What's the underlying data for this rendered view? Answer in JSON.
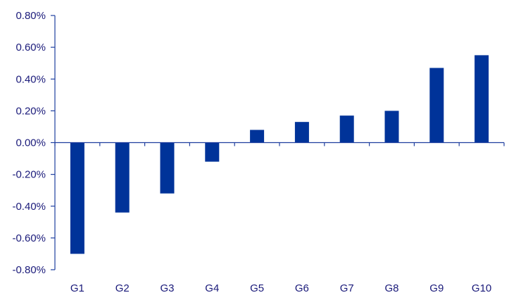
{
  "chart_data": {
    "type": "bar",
    "title": "",
    "xlabel": "",
    "ylabel": "",
    "categories": [
      "G1",
      "G2",
      "G3",
      "G4",
      "G5",
      "G6",
      "G7",
      "G8",
      "G9",
      "G10"
    ],
    "values": [
      -0.7,
      -0.44,
      -0.32,
      -0.12,
      0.08,
      0.13,
      0.17,
      0.2,
      0.47,
      0.55
    ],
    "ylim": [
      -0.8,
      0.8
    ],
    "yticks": [
      0.8,
      0.6,
      0.4,
      0.2,
      0.0,
      -0.2,
      -0.4,
      -0.6,
      -0.8
    ],
    "ytick_labels": [
      "0.80%",
      "0.60%",
      "0.40%",
      "0.20%",
      "0.00%",
      "-0.20%",
      "-0.40%",
      "-0.60%",
      "-0.80%"
    ],
    "value_unit": "%",
    "grid": false,
    "legend": "none",
    "colors": {
      "bar": "#003399",
      "axis": "#1f3f9f",
      "text": "#1a1a7a"
    }
  }
}
